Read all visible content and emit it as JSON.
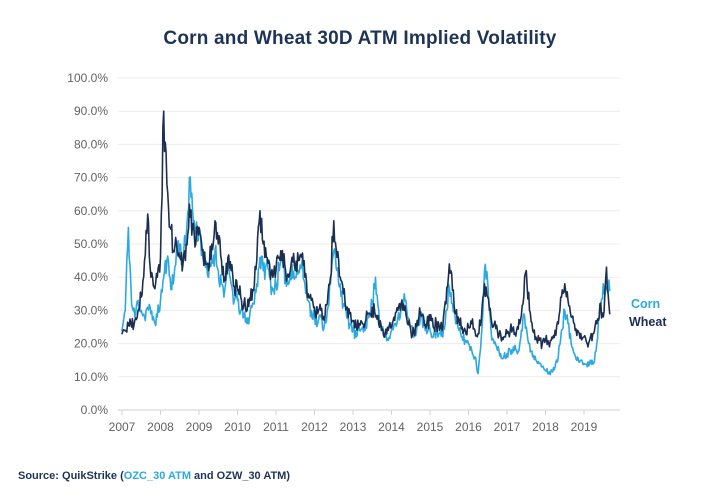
{
  "title": "Corn and Wheat 30D ATM Implied Volatility",
  "legend": {
    "corn": "Corn",
    "wheat": "Wheat"
  },
  "source": {
    "prefix": "Source: QuikStrike (",
    "link": "OZC_30 ATM",
    "suffix": " and OZW_30 ATM)"
  },
  "colors": {
    "title": "#1e3456",
    "corn": "#2ba9e0",
    "wheat": "#1c2f51",
    "axis_text": "#636363",
    "gridline": "#ececec",
    "axis_line": "#d2d2d2",
    "background": "#ffffff"
  },
  "chart_data": {
    "type": "line",
    "title": "Corn and Wheat 30D ATM Implied Volatility",
    "xlabel": "",
    "ylabel": "",
    "ylim": [
      0,
      100
    ],
    "grid": true,
    "legend_position": "right-end-of-line",
    "y_tick_labels": [
      "0.0%",
      "10.0%",
      "20.0%",
      "30.0%",
      "40.0%",
      "50.0%",
      "60.0%",
      "70.0%",
      "80.0%",
      "90.0%",
      "100.0%"
    ],
    "x_tick_labels": [
      "2007",
      "2008",
      "2009",
      "2010",
      "2011",
      "2012",
      "2013",
      "2014",
      "2015",
      "2016",
      "2017",
      "2018",
      "2019"
    ],
    "x_start": "2007-01",
    "x_resolution": "monthly",
    "units": "percent_implied_volatility",
    "series": [
      {
        "name": "Corn",
        "color": "#2ba9e0",
        "values": [
          24,
          30,
          55,
          32,
          28,
          33,
          30,
          28,
          31,
          29,
          27,
          28,
          33,
          40,
          45,
          40,
          38,
          48,
          50,
          45,
          52,
          70,
          60,
          53,
          55,
          48,
          43,
          40,
          45,
          48,
          42,
          38,
          36,
          42,
          38,
          33,
          33,
          30,
          28,
          26,
          30,
          32,
          38,
          46,
          42,
          44,
          40,
          36,
          38,
          42,
          45,
          40,
          38,
          44,
          40,
          42,
          44,
          38,
          33,
          30,
          28,
          26,
          28,
          25,
          30,
          38,
          48,
          42,
          38,
          32,
          28,
          26,
          24,
          22,
          24,
          25,
          26,
          28,
          32,
          40,
          30,
          24,
          22,
          21,
          24,
          26,
          28,
          31,
          35,
          28,
          25,
          22,
          26,
          28,
          26,
          23,
          24,
          22,
          24,
          23,
          22,
          30,
          37,
          32,
          26,
          24,
          22,
          21,
          20,
          18,
          16,
          11,
          22,
          42,
          38,
          24,
          20,
          18,
          17,
          16,
          17,
          18,
          19,
          18,
          20,
          28,
          25,
          20,
          16,
          15,
          14,
          13,
          12,
          11,
          12,
          13,
          16,
          24,
          30,
          26,
          20,
          17,
          16,
          15,
          14,
          13,
          15,
          14,
          20,
          32,
          38,
          37,
          36
        ]
      },
      {
        "name": "Wheat",
        "color": "#1c2f51",
        "values": [
          23,
          24,
          26,
          25,
          27,
          30,
          34,
          45,
          59,
          40,
          37,
          40,
          46,
          90,
          68,
          55,
          48,
          50,
          46,
          44,
          50,
          62,
          56,
          50,
          55,
          48,
          44,
          42,
          50,
          57,
          50,
          45,
          40,
          46,
          42,
          37,
          36,
          34,
          32,
          30,
          33,
          36,
          45,
          60,
          50,
          46,
          44,
          40,
          42,
          46,
          48,
          42,
          40,
          46,
          42,
          45,
          46,
          40,
          35,
          33,
          31,
          29,
          30,
          27,
          32,
          40,
          57,
          46,
          40,
          35,
          31,
          29,
          27,
          25,
          26,
          26,
          27,
          29,
          31,
          28,
          26,
          24,
          23,
          24,
          25,
          27,
          30,
          32,
          30,
          26,
          24,
          23,
          27,
          29,
          28,
          26,
          27,
          25,
          26,
          24,
          25,
          32,
          44,
          36,
          29,
          27,
          25,
          24,
          25,
          26,
          24,
          23,
          27,
          38,
          34,
          28,
          26,
          24,
          23,
          22,
          23,
          24,
          25,
          24,
          26,
          32,
          42,
          30,
          24,
          22,
          21,
          20,
          21,
          20,
          22,
          24,
          26,
          34,
          38,
          33,
          28,
          26,
          24,
          23,
          22,
          20,
          22,
          23,
          26,
          32,
          28,
          43,
          29
        ]
      }
    ],
    "render_jitter": {
      "subdivisions": 4,
      "amplitude": 0.085,
      "seed": 11
    }
  }
}
